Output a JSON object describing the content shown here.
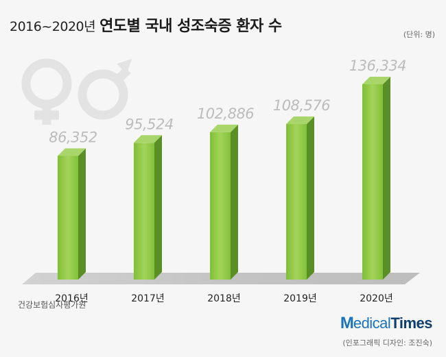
{
  "title": {
    "range": "2016~2020년",
    "main": "연도별 국내 성조숙증 환자 수"
  },
  "unit": "(단위: 명)",
  "source": "건강보험심사평가원",
  "logo": {
    "m": "M",
    "edical": "edical",
    "times": "Times"
  },
  "credit": "(인포그래픽 디자인: 조진숙)",
  "icons": [
    "female-symbol-icon",
    "male-symbol-icon"
  ],
  "colors": {
    "bar_front": "#8cc63f",
    "bar_side": "#5a8f25",
    "bar_top": "#a9d66a",
    "floor": "#c8c8c8",
    "value_label": "#bcbcbc"
  },
  "chart_data": {
    "type": "bar",
    "categories": [
      "2016년",
      "2017년",
      "2018년",
      "2019년",
      "2020년"
    ],
    "values": [
      86352,
      95524,
      102886,
      108576,
      136334
    ],
    "value_labels": [
      "86,352",
      "95,524",
      "102,886",
      "108,576",
      "136,334"
    ],
    "title": "2016~2020년 연도별 국내 성조숙증 환자 수",
    "xlabel": "",
    "ylabel": "",
    "unit": "명"
  }
}
